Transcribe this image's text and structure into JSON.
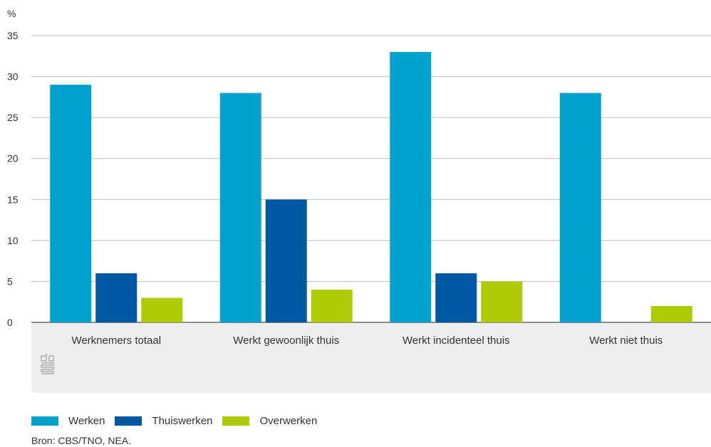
{
  "chart_data": {
    "type": "bar",
    "unit_label": "%",
    "categories": [
      "Werknemers totaal",
      "Werkt gewoonlijk thuis",
      "Werkt incidenteel thuis",
      "Werkt niet thuis"
    ],
    "series": [
      {
        "name": "Werken",
        "color": "#00a1cd",
        "values": [
          29,
          28,
          33,
          28
        ]
      },
      {
        "name": "Thuiswerken",
        "color": "#0058a3",
        "values": [
          6,
          15,
          6,
          0
        ]
      },
      {
        "name": "Overwerken",
        "color": "#afcb05",
        "values": [
          3,
          4,
          5,
          2
        ]
      }
    ],
    "ylim": [
      0,
      35
    ],
    "yticks": [
      0,
      5,
      10,
      15,
      20,
      25,
      30,
      35
    ],
    "grid": true,
    "legend_position": "bottom-left"
  },
  "colors": {
    "category_band": "#eeeeee",
    "logo": "#aaaaaa"
  },
  "logo_icon": "cbs-logo-icon",
  "source": "Bron: CBS/TNO, NEA."
}
